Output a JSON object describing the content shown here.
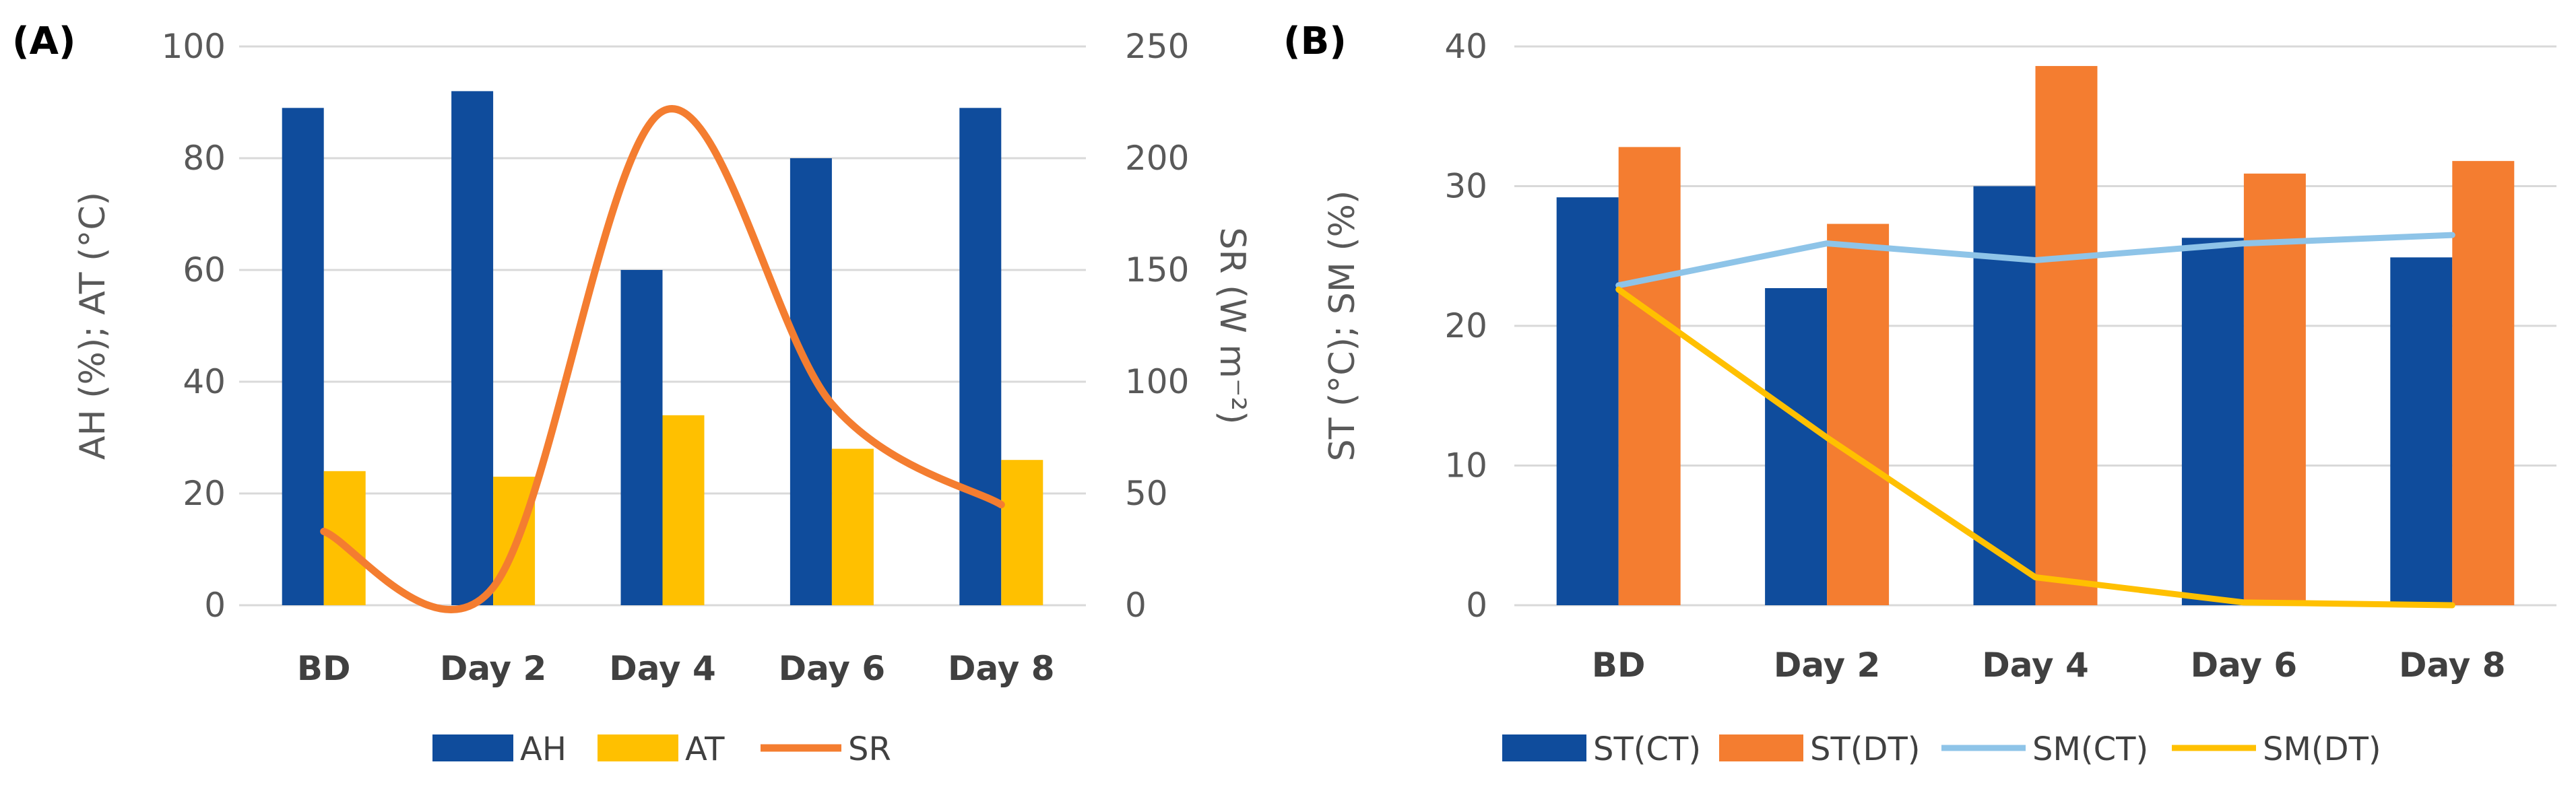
{
  "colors": {
    "blue": "#0F4C9C",
    "gold": "#FFC000",
    "orange": "#F47D30",
    "lightblue": "#8EC4E8",
    "grid": "#D9D9D9"
  },
  "chart_data": [
    {
      "panel_label": "(A)",
      "type": "bar",
      "categories": [
        "BD",
        "Day 2",
        "Day 4",
        "Day 6",
        "Day 8"
      ],
      "ylabel": "AH (%); AT (°C)",
      "ylim": [
        0,
        100
      ],
      "yticks": [
        "0",
        "20",
        "40",
        "60",
        "80",
        "100"
      ],
      "y2label": "SR (W m⁻²)",
      "y2lim": [
        0,
        250
      ],
      "y2ticks": [
        "0",
        "50",
        "100",
        "150",
        "200",
        "250"
      ],
      "grid": true,
      "legend_position": "bottom",
      "series": [
        {
          "name": "AH",
          "kind": "bar",
          "axis": "left",
          "color": "#0F4C9C",
          "values": [
            89,
            92,
            60,
            80,
            89
          ]
        },
        {
          "name": "AT",
          "kind": "bar",
          "axis": "left",
          "color": "#FFC000",
          "values": [
            24,
            23,
            34,
            28,
            26
          ]
        },
        {
          "name": "SR",
          "kind": "line",
          "axis": "right",
          "smooth": true,
          "color": "#F47D30",
          "values": [
            33,
            8,
            221,
            90,
            45
          ]
        }
      ]
    },
    {
      "panel_label": "(B)",
      "type": "bar",
      "categories": [
        "BD",
        "Day 2",
        "Day 4",
        "Day 6",
        "Day 8"
      ],
      "ylabel": "ST (°C); SM (%)",
      "ylim": [
        0,
        40
      ],
      "yticks": [
        "0",
        "10",
        "20",
        "30",
        "40"
      ],
      "grid": true,
      "legend_position": "bottom",
      "series": [
        {
          "name": "ST(CT)",
          "kind": "bar",
          "color": "#0F4C9C",
          "values": [
            29.2,
            22.7,
            30,
            26.3,
            24.9
          ]
        },
        {
          "name": "ST(DT)",
          "kind": "bar",
          "color": "#F47D30",
          "values": [
            32.8,
            27.3,
            38.6,
            30.9,
            31.8
          ]
        },
        {
          "name": "SM(CT)",
          "kind": "line",
          "smooth": false,
          "color": "#8EC4E8",
          "values": [
            22.9,
            25.9,
            24.7,
            25.9,
            26.5
          ]
        },
        {
          "name": "SM(DT)",
          "kind": "line",
          "smooth": false,
          "color": "#FFC000",
          "values": [
            22.6,
            12,
            2,
            0.2,
            0
          ]
        }
      ]
    }
  ]
}
